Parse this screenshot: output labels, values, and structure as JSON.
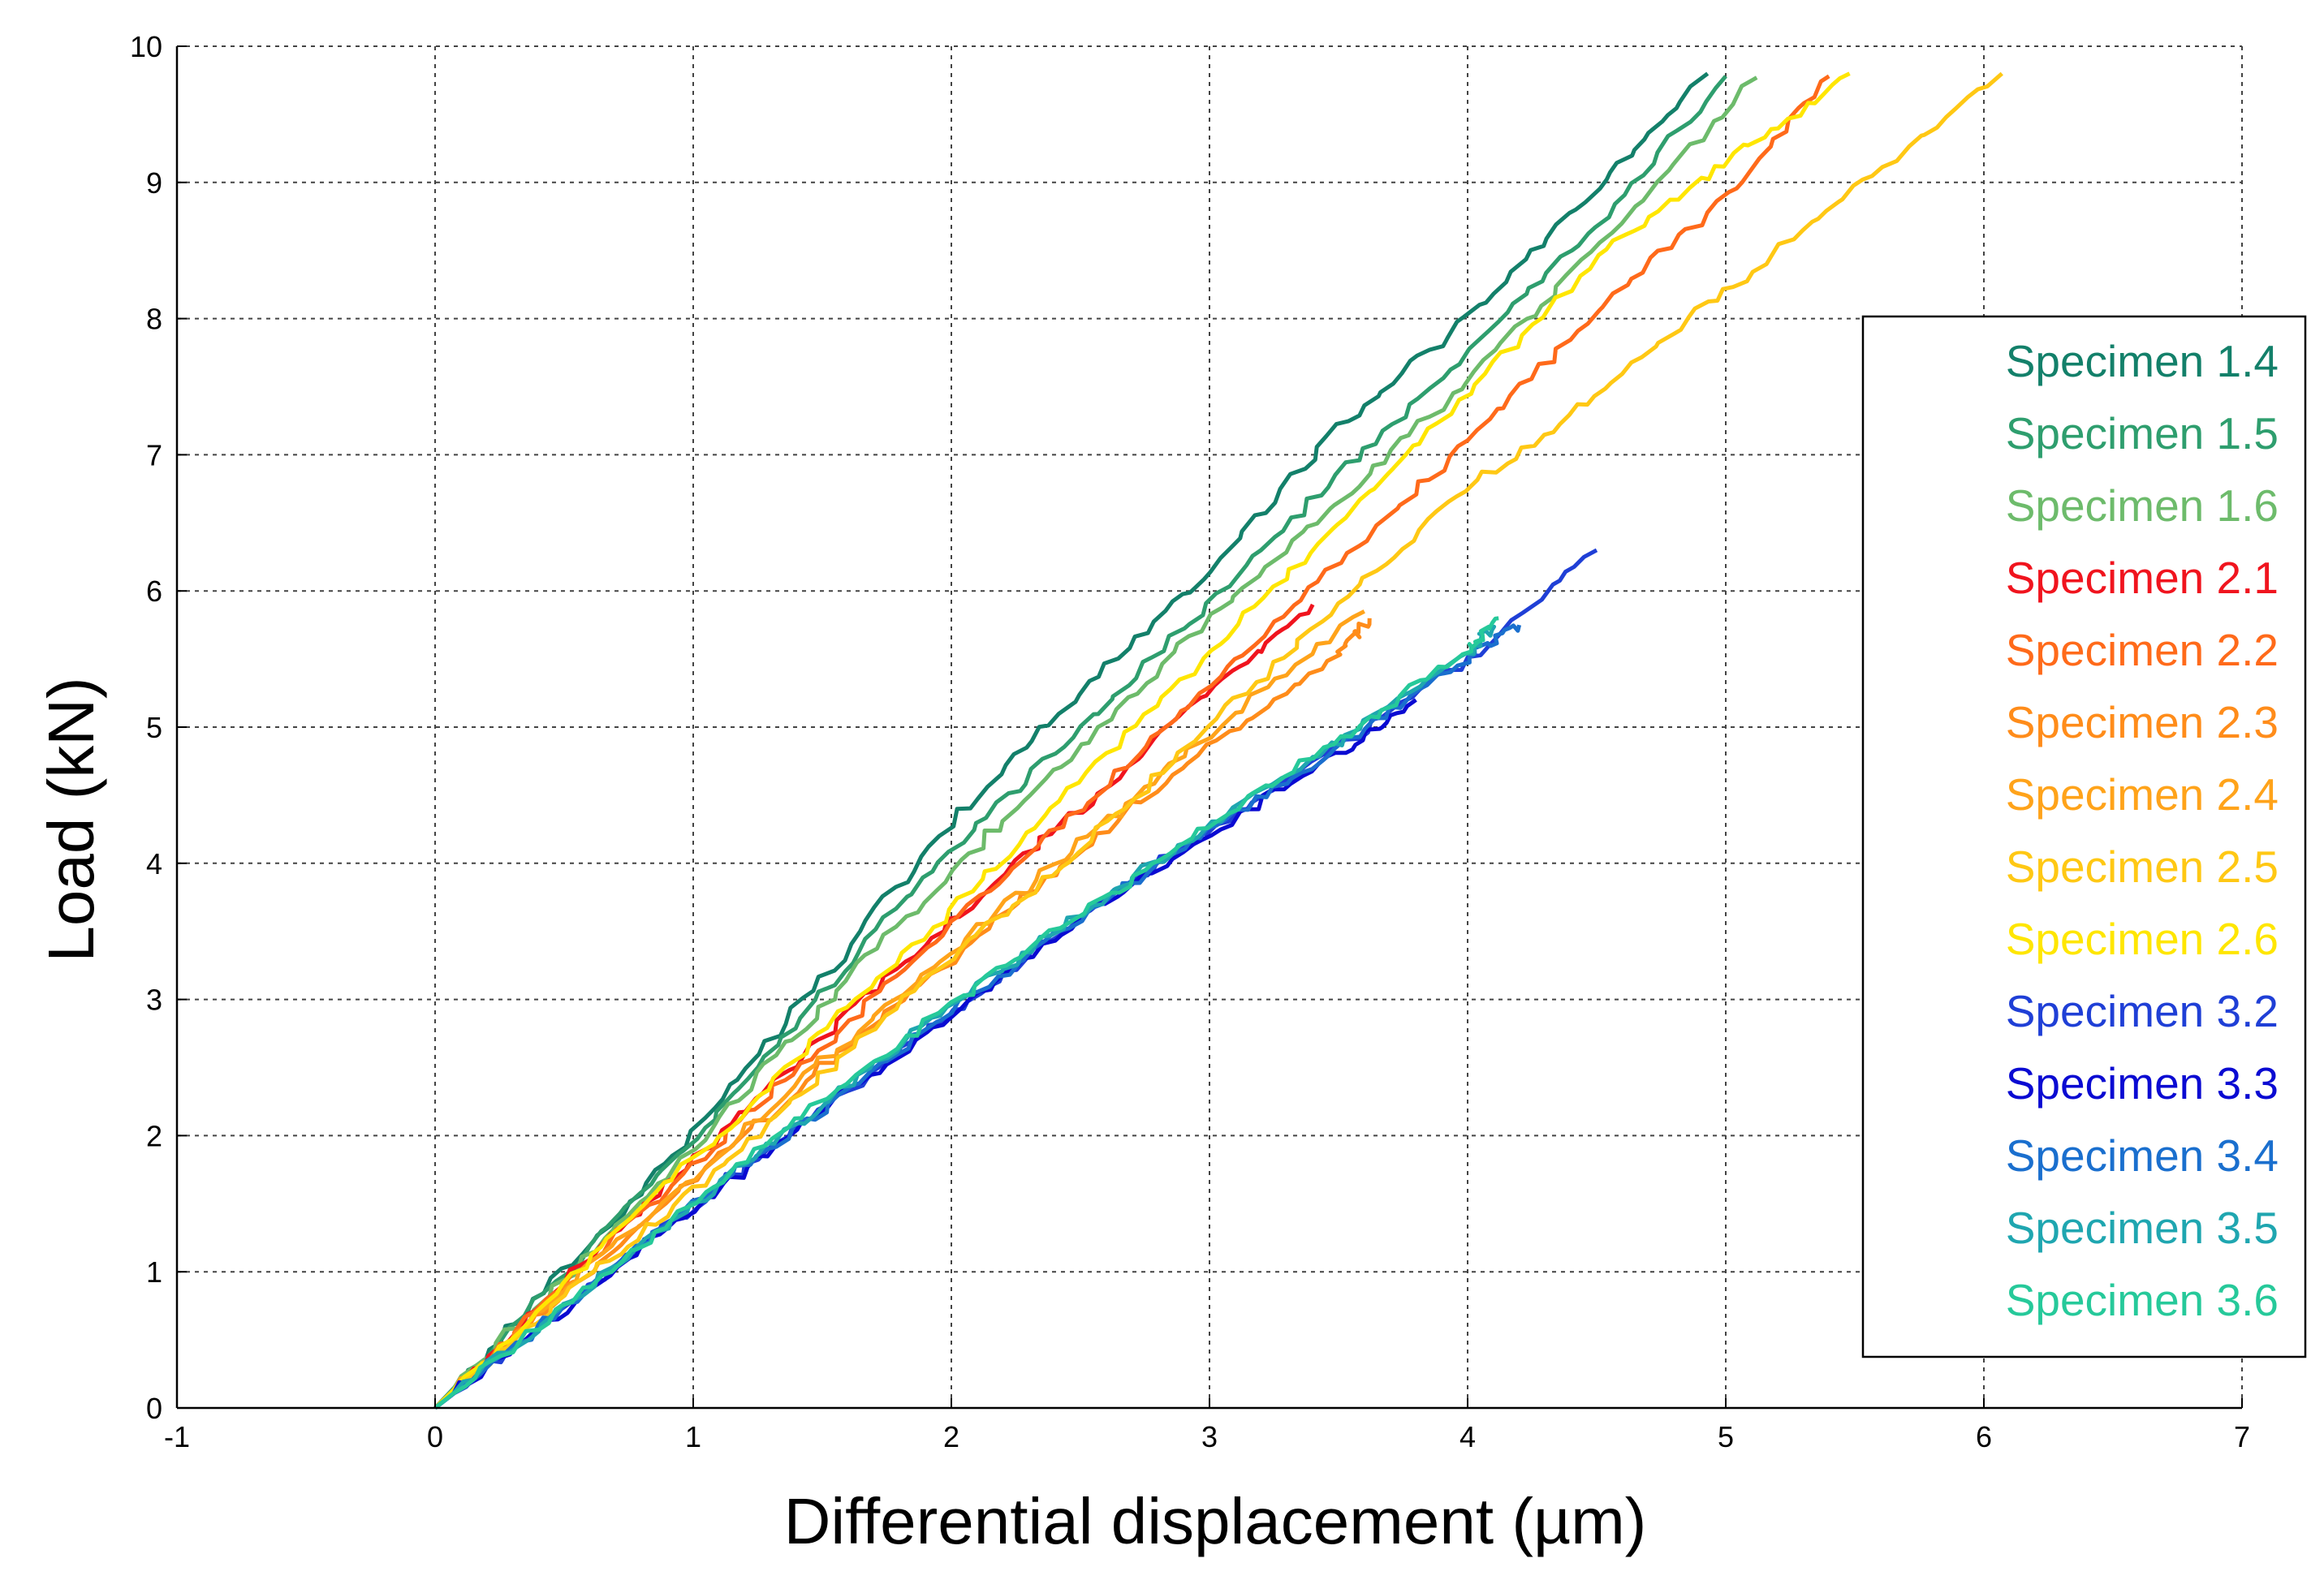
{
  "chart_data": {
    "type": "line",
    "title": "",
    "xlabel": "Differential displacement (µm)",
    "ylabel": "Load (kN)",
    "xlim": [
      -1,
      7
    ],
    "ylim": [
      0,
      10
    ],
    "x_ticks": [
      "-1",
      "0",
      "1",
      "2",
      "3",
      "4",
      "5",
      "6",
      "7"
    ],
    "y_ticks": [
      "0",
      "1",
      "2",
      "3",
      "4",
      "5",
      "6",
      "7",
      "8",
      "9",
      "10"
    ],
    "grid": true,
    "legend_position": "right",
    "series": [
      {
        "name": "Specimen 1.4",
        "color": "#13806a",
        "points": [
          [
            0,
            0
          ],
          [
            0.5,
            1.0
          ],
          [
            1,
            2.02
          ],
          [
            1.5,
            3.15
          ],
          [
            2,
            4.3
          ],
          [
            2.5,
            5.25
          ],
          [
            3,
            6.15
          ],
          [
            3.5,
            7.2
          ],
          [
            4,
            8.0
          ],
          [
            4.5,
            8.95
          ],
          [
            4.93,
            9.8
          ]
        ]
      },
      {
        "name": "Specimen 1.5",
        "color": "#2e9e6e",
        "points": [
          [
            0,
            0
          ],
          [
            0.5,
            0.98
          ],
          [
            1,
            1.98
          ],
          [
            1.5,
            3.05
          ],
          [
            2,
            4.1
          ],
          [
            2.5,
            5.0
          ],
          [
            3,
            5.9
          ],
          [
            3.5,
            6.85
          ],
          [
            4,
            7.75
          ],
          [
            4.5,
            8.7
          ],
          [
            5.0,
            9.78
          ]
        ]
      },
      {
        "name": "Specimen 1.6",
        "color": "#6dbb6b",
        "points": [
          [
            0,
            0
          ],
          [
            0.5,
            0.95
          ],
          [
            1,
            1.92
          ],
          [
            1.5,
            2.95
          ],
          [
            2,
            3.95
          ],
          [
            2.5,
            4.85
          ],
          [
            3,
            5.8
          ],
          [
            3.5,
            6.65
          ],
          [
            4,
            7.55
          ],
          [
            4.5,
            8.55
          ],
          [
            5.12,
            9.77
          ]
        ]
      },
      {
        "name": "Specimen 2.1",
        "color": "#f0141e",
        "points": [
          [
            0,
            0
          ],
          [
            0.5,
            0.92
          ],
          [
            1,
            1.82
          ],
          [
            1.5,
            2.72
          ],
          [
            2,
            3.58
          ],
          [
            2.5,
            4.4
          ],
          [
            3,
            5.25
          ],
          [
            3.4,
            5.9
          ]
        ]
      },
      {
        "name": "Specimen 2.2",
        "color": "#ff6a1a",
        "points": [
          [
            0,
            0
          ],
          [
            0.5,
            0.9
          ],
          [
            1,
            1.78
          ],
          [
            1.5,
            2.65
          ],
          [
            2,
            3.55
          ],
          [
            2.5,
            4.4
          ],
          [
            3,
            5.3
          ],
          [
            3.5,
            6.2
          ],
          [
            4,
            7.1
          ],
          [
            4.5,
            8.05
          ],
          [
            5.0,
            8.9
          ],
          [
            5.4,
            9.78
          ]
        ]
      },
      {
        "name": "Specimen 2.3",
        "color": "#ff8c1a",
        "points": [
          [
            0,
            0
          ],
          [
            0.5,
            0.85
          ],
          [
            1,
            1.68
          ],
          [
            1.5,
            2.5
          ],
          [
            2,
            3.3
          ],
          [
            2.5,
            4.1
          ],
          [
            3,
            4.85
          ],
          [
            3.5,
            5.55
          ],
          [
            3.62,
            5.8
          ]
        ]
      },
      {
        "name": "Specimen 2.4",
        "color": "#ffa31a",
        "points": [
          [
            0,
            0
          ],
          [
            0.5,
            0.86
          ],
          [
            1,
            1.7
          ],
          [
            1.5,
            2.55
          ],
          [
            2,
            3.35
          ],
          [
            2.5,
            4.15
          ],
          [
            3,
            4.95
          ],
          [
            3.6,
            5.85
          ]
        ]
      },
      {
        "name": "Specimen 2.5",
        "color": "#ffc814",
        "points": [
          [
            0,
            0
          ],
          [
            0.5,
            0.82
          ],
          [
            1,
            1.6
          ],
          [
            1.5,
            2.45
          ],
          [
            2,
            3.3
          ],
          [
            2.5,
            4.1
          ],
          [
            3,
            5.0
          ],
          [
            3.5,
            5.9
          ],
          [
            4,
            6.75
          ],
          [
            4.5,
            7.45
          ],
          [
            5,
            8.2
          ],
          [
            5.5,
            8.95
          ],
          [
            6.07,
            9.8
          ]
        ]
      },
      {
        "name": "Specimen 2.6",
        "color": "#ffe600",
        "points": [
          [
            0,
            0
          ],
          [
            0.5,
            0.92
          ],
          [
            1,
            1.82
          ],
          [
            1.5,
            2.75
          ],
          [
            2,
            3.65
          ],
          [
            2.5,
            4.6
          ],
          [
            3,
            5.55
          ],
          [
            3.5,
            6.5
          ],
          [
            4,
            7.45
          ],
          [
            4.5,
            8.45
          ],
          [
            5,
            9.15
          ],
          [
            5.48,
            9.8
          ]
        ]
      },
      {
        "name": "Specimen 3.2",
        "color": "#1f3fd6",
        "points": [
          [
            0,
            0
          ],
          [
            0.5,
            0.74
          ],
          [
            1,
            1.48
          ],
          [
            1.5,
            2.2
          ],
          [
            2,
            2.9
          ],
          [
            2.5,
            3.6
          ],
          [
            3,
            4.25
          ],
          [
            3.5,
            4.85
          ],
          [
            4,
            5.5
          ],
          [
            4.5,
            6.3
          ]
        ]
      },
      {
        "name": "Specimen 3.3",
        "color": "#0a0ad2",
        "points": [
          [
            0,
            0
          ],
          [
            0.5,
            0.73
          ],
          [
            1,
            1.47
          ],
          [
            1.5,
            2.18
          ],
          [
            2,
            2.88
          ],
          [
            2.5,
            3.58
          ],
          [
            3,
            4.22
          ],
          [
            3.5,
            4.8
          ],
          [
            3.8,
            5.2
          ]
        ]
      },
      {
        "name": "Specimen 3.4",
        "color": "#1a6fce",
        "points": [
          [
            0,
            0
          ],
          [
            0.5,
            0.74
          ],
          [
            1,
            1.5
          ],
          [
            1.5,
            2.2
          ],
          [
            2,
            2.92
          ],
          [
            2.5,
            3.6
          ],
          [
            3,
            4.25
          ],
          [
            3.5,
            4.85
          ],
          [
            4,
            5.5
          ],
          [
            4.2,
            5.75
          ]
        ]
      },
      {
        "name": "Specimen 3.5",
        "color": "#1fa6b0",
        "points": [
          [
            0,
            0
          ],
          [
            0.5,
            0.75
          ],
          [
            1,
            1.5
          ],
          [
            1.5,
            2.22
          ],
          [
            2,
            2.95
          ],
          [
            2.5,
            3.62
          ],
          [
            3,
            4.28
          ],
          [
            3.5,
            4.9
          ],
          [
            4,
            5.55
          ],
          [
            4.1,
            5.75
          ]
        ]
      },
      {
        "name": "Specimen 3.6",
        "color": "#26c99a",
        "points": [
          [
            0,
            0
          ],
          [
            0.5,
            0.75
          ],
          [
            1,
            1.52
          ],
          [
            1.5,
            2.25
          ],
          [
            2,
            2.97
          ],
          [
            2.5,
            3.62
          ],
          [
            3,
            4.28
          ],
          [
            3.5,
            4.92
          ],
          [
            4,
            5.55
          ],
          [
            4.12,
            5.8
          ]
        ]
      }
    ]
  }
}
